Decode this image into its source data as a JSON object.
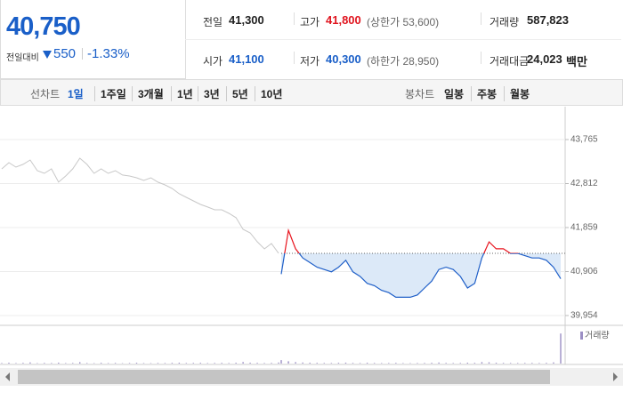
{
  "quote": {
    "price": "40,750",
    "change_label": "전일대비",
    "change": "550",
    "change_pct": "-1.33%",
    "fields": [
      {
        "label": "전일",
        "value": "41,300",
        "color": "#222222"
      },
      {
        "label": "고가",
        "value": "41,800",
        "note": "(상한가 53,600)",
        "color": "#e0141e"
      },
      {
        "label": "거래량",
        "value": "587,823",
        "color": "#222222"
      },
      {
        "label": "시가",
        "value": "41,100",
        "color": "#1a5fc8"
      },
      {
        "label": "저가",
        "value": "40,300",
        "note": "(하한가 28,950)",
        "color": "#1a5fc8"
      },
      {
        "label": "거래대금",
        "value": "24,023",
        "unit": "백만",
        "color": "#222222"
      }
    ]
  },
  "tabs": {
    "line_label": "선차트",
    "periods": [
      "1일",
      "1주일",
      "3개월",
      "1년",
      "3년",
      "5년",
      "10년"
    ],
    "active": 0,
    "candle_label": "봉차트",
    "candles": [
      "일봉",
      "주봉",
      "월봉"
    ]
  },
  "chart_data": {
    "type": "line",
    "series": [
      {
        "color": "#c8c8c8",
        "values": [
          43130,
          43265,
          43169,
          43227,
          43323,
          43092,
          43034,
          43130,
          42842,
          42976,
          43130,
          43361,
          43227,
          43034,
          43130,
          43034,
          43092,
          42996,
          42976,
          42938,
          42880,
          42938,
          42842,
          42784,
          42707,
          42591,
          42514,
          42437,
          42360,
          42303,
          42245,
          42245,
          42168,
          42072,
          41821,
          41744,
          41552,
          41398,
          41513,
          41302
        ]
      },
      {
        "color": "#1f5fc8",
        "up_color": "#e8141e",
        "area_color": "#dce9f8",
        "values": [
          40850,
          41800,
          41400,
          41200,
          41100,
          41000,
          40950,
          40900,
          41000,
          41150,
          40900,
          40800,
          40650,
          40600,
          40500,
          40450,
          40350,
          40350,
          40350,
          40400,
          40550,
          40700,
          40950,
          41000,
          40950,
          40800,
          40550,
          40650,
          41200,
          41550,
          41400,
          41400,
          41300,
          41300,
          41250,
          41200,
          41200,
          41150,
          41000,
          40750
        ]
      }
    ],
    "baseline": 41300,
    "ylim": [
      39761,
      44381
    ],
    "yticks": [
      {
        "value": 43765,
        "label": "43,765"
      },
      {
        "value": 42812,
        "label": "42,812"
      },
      {
        "value": 41859,
        "label": "41,859"
      },
      {
        "value": 40906,
        "label": "40,906"
      },
      {
        "value": 39954,
        "label": "39,954"
      }
    ],
    "grid": true,
    "volume": {
      "name": "거래량",
      "color": "#9b8ec4",
      "ylim": [
        0,
        60000
      ],
      "values": [
        900,
        1500,
        800,
        1200,
        2000,
        700,
        1100,
        900,
        1600,
        800,
        1000,
        2400,
        900,
        700,
        1300,
        800,
        1100,
        600,
        900,
        1400,
        800,
        700,
        1000,
        900,
        1200,
        1500,
        900,
        1100,
        1300,
        800,
        1000,
        1200,
        900,
        1400,
        2600,
        1500,
        1200,
        900,
        1100,
        1800,
        6000,
        4000,
        2500,
        1800,
        1500,
        1200,
        1000,
        900,
        1300,
        1600,
        1100,
        900,
        1400,
        1000,
        800,
        900,
        1200,
        800,
        700,
        900,
        1000,
        1300,
        1800,
        1100,
        900,
        1000,
        1500,
        1200,
        2500,
        2200,
        1400,
        1100,
        1000,
        900,
        1000,
        1100,
        900,
        1200,
        2000,
        52000
      ]
    }
  }
}
